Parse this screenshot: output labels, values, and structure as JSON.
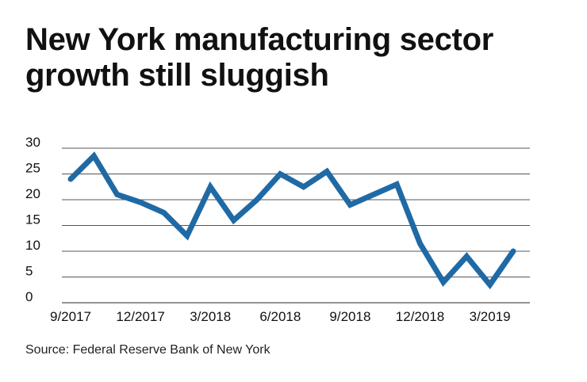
{
  "title_lines": [
    "New York manufacturing sector",
    "growth still sluggish"
  ],
  "source": "Source: Federal Reserve Bank of New York",
  "colors": {
    "line": "#1f6aa5",
    "grid": "#555555",
    "text": "#111111"
  },
  "chart_data": {
    "type": "line",
    "title": "New York manufacturing sector growth still sluggish",
    "xlabel": "",
    "ylabel": "",
    "ylim": [
      0,
      30
    ],
    "y_ticks": [
      "0",
      "5",
      "10",
      "15",
      "20",
      "25",
      "30"
    ],
    "grid": "horizontal",
    "x_ticks": [
      "9/2017",
      "12/2017",
      "3/2018",
      "6/2018",
      "9/2018",
      "12/2018",
      "3/2019"
    ],
    "x": [
      "9/2017",
      "10/2017",
      "11/2017",
      "12/2017",
      "1/2018",
      "2/2018",
      "3/2018",
      "4/2018",
      "5/2018",
      "6/2018",
      "7/2018",
      "8/2018",
      "9/2018",
      "10/2018",
      "11/2018",
      "12/2018",
      "1/2019",
      "2/2019",
      "3/2019",
      "4/2019"
    ],
    "series": [
      {
        "values": [
          24.0,
          28.5,
          21.0,
          19.5,
          17.5,
          13.0,
          22.5,
          16.0,
          20.0,
          25.0,
          22.5,
          25.5,
          19.0,
          21.0,
          23.0,
          11.5,
          4.0,
          9.0,
          3.5,
          10.0
        ]
      }
    ]
  }
}
